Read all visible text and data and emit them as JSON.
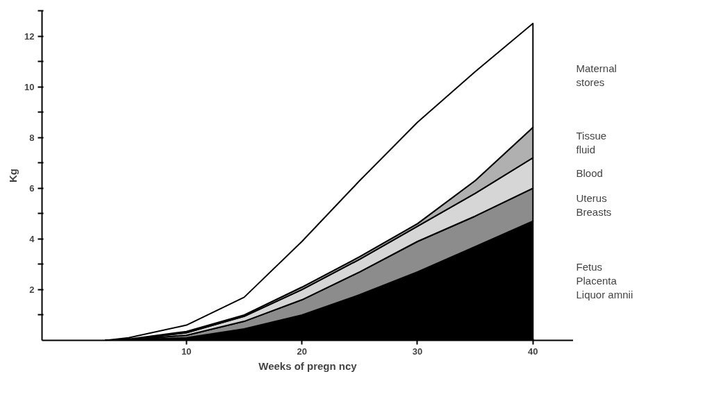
{
  "chart_data": {
    "type": "area",
    "stacked": true,
    "xlabel": "Weeks of pregn ncy",
    "ylabel": "Kg",
    "x": [
      3,
      5,
      10,
      15,
      20,
      25,
      30,
      35,
      40
    ],
    "series": [
      {
        "name": "Fetus\nPlacenta\nLiquor amnii",
        "color": "#000000",
        "values": [
          0,
          0.02,
          0.1,
          0.45,
          1.0,
          1.8,
          2.7,
          3.7,
          4.7
        ]
      },
      {
        "name": "Uterus\nBreasts",
        "color": "#8c8c8c",
        "values": [
          0,
          0.01,
          0.1,
          0.3,
          0.6,
          0.9,
          1.2,
          1.2,
          1.3
        ]
      },
      {
        "name": "Blood",
        "color": "#d6d6d6",
        "values": [
          0,
          0.01,
          0.1,
          0.2,
          0.4,
          0.5,
          0.6,
          0.9,
          1.2
        ]
      },
      {
        "name": "Tissue\nfluid",
        "color": "#b0b0b0",
        "values": [
          0,
          0.01,
          0.05,
          0.05,
          0.1,
          0.1,
          0.1,
          0.5,
          1.2
        ]
      },
      {
        "name": "Maternal\nstores",
        "color": "#ffffff",
        "values": [
          0,
          0.05,
          0.25,
          0.7,
          1.8,
          3.0,
          4.0,
          4.3,
          4.1
        ]
      }
    ],
    "xlim": [
      -2.5,
      43.5
    ],
    "ylim": [
      0,
      13
    ],
    "xticks": [
      10,
      20,
      30,
      40
    ],
    "yticks": [
      {
        "value": 1,
        "label": null
      },
      2,
      {
        "value": 3,
        "label": null
      },
      4,
      {
        "value": 5,
        "label": null
      },
      6,
      {
        "value": 7,
        "label": null
      },
      8,
      {
        "value": 9,
        "label": null
      },
      10,
      {
        "value": 11,
        "label": null
      },
      12,
      {
        "value": 13,
        "label": null
      }
    ],
    "grid": false
  }
}
